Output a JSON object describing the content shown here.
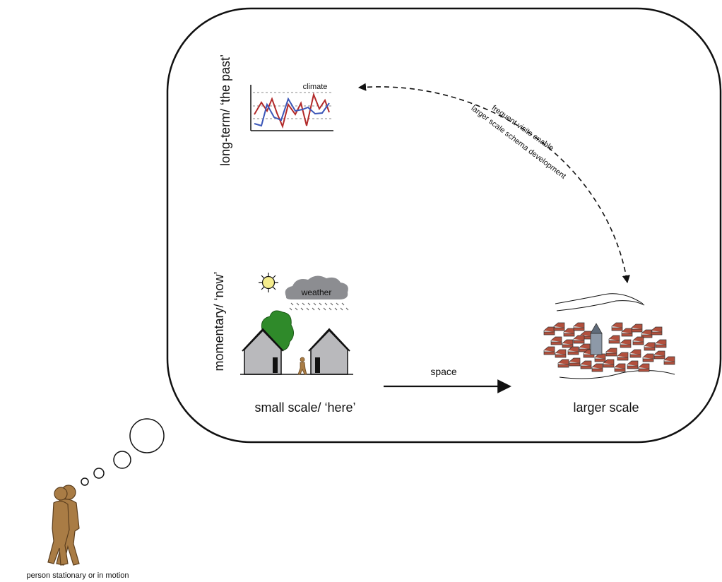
{
  "labels": {
    "axis_long_term": "long-term/ ‘the past’",
    "axis_momentary": "momentary/ ‘now’",
    "climate": "climate",
    "weather": "weather",
    "space": "space",
    "small_scale": "small scale/ ‘here’",
    "larger_scale": "larger scale",
    "arrow_note_line1": "frequent visits enable",
    "arrow_note_line2": "larger scale schema development",
    "person": "person stationary or in motion"
  },
  "colors": {
    "frame": "#111111",
    "climate_red": "#b22a2a",
    "climate_blue": "#3b56b8",
    "house_gray": "#b9b9bc",
    "tree_green": "#2f8a2a",
    "cloud_gray": "#8c8d91",
    "sun_yellow": "#f4ec8c",
    "roof_red": "#b2503d",
    "person_brown": "#a97c45"
  },
  "icons": [
    "sun-icon",
    "cloud-icon",
    "tree-icon",
    "house-icon",
    "town-icon",
    "person-icon",
    "climate-chart-icon"
  ]
}
